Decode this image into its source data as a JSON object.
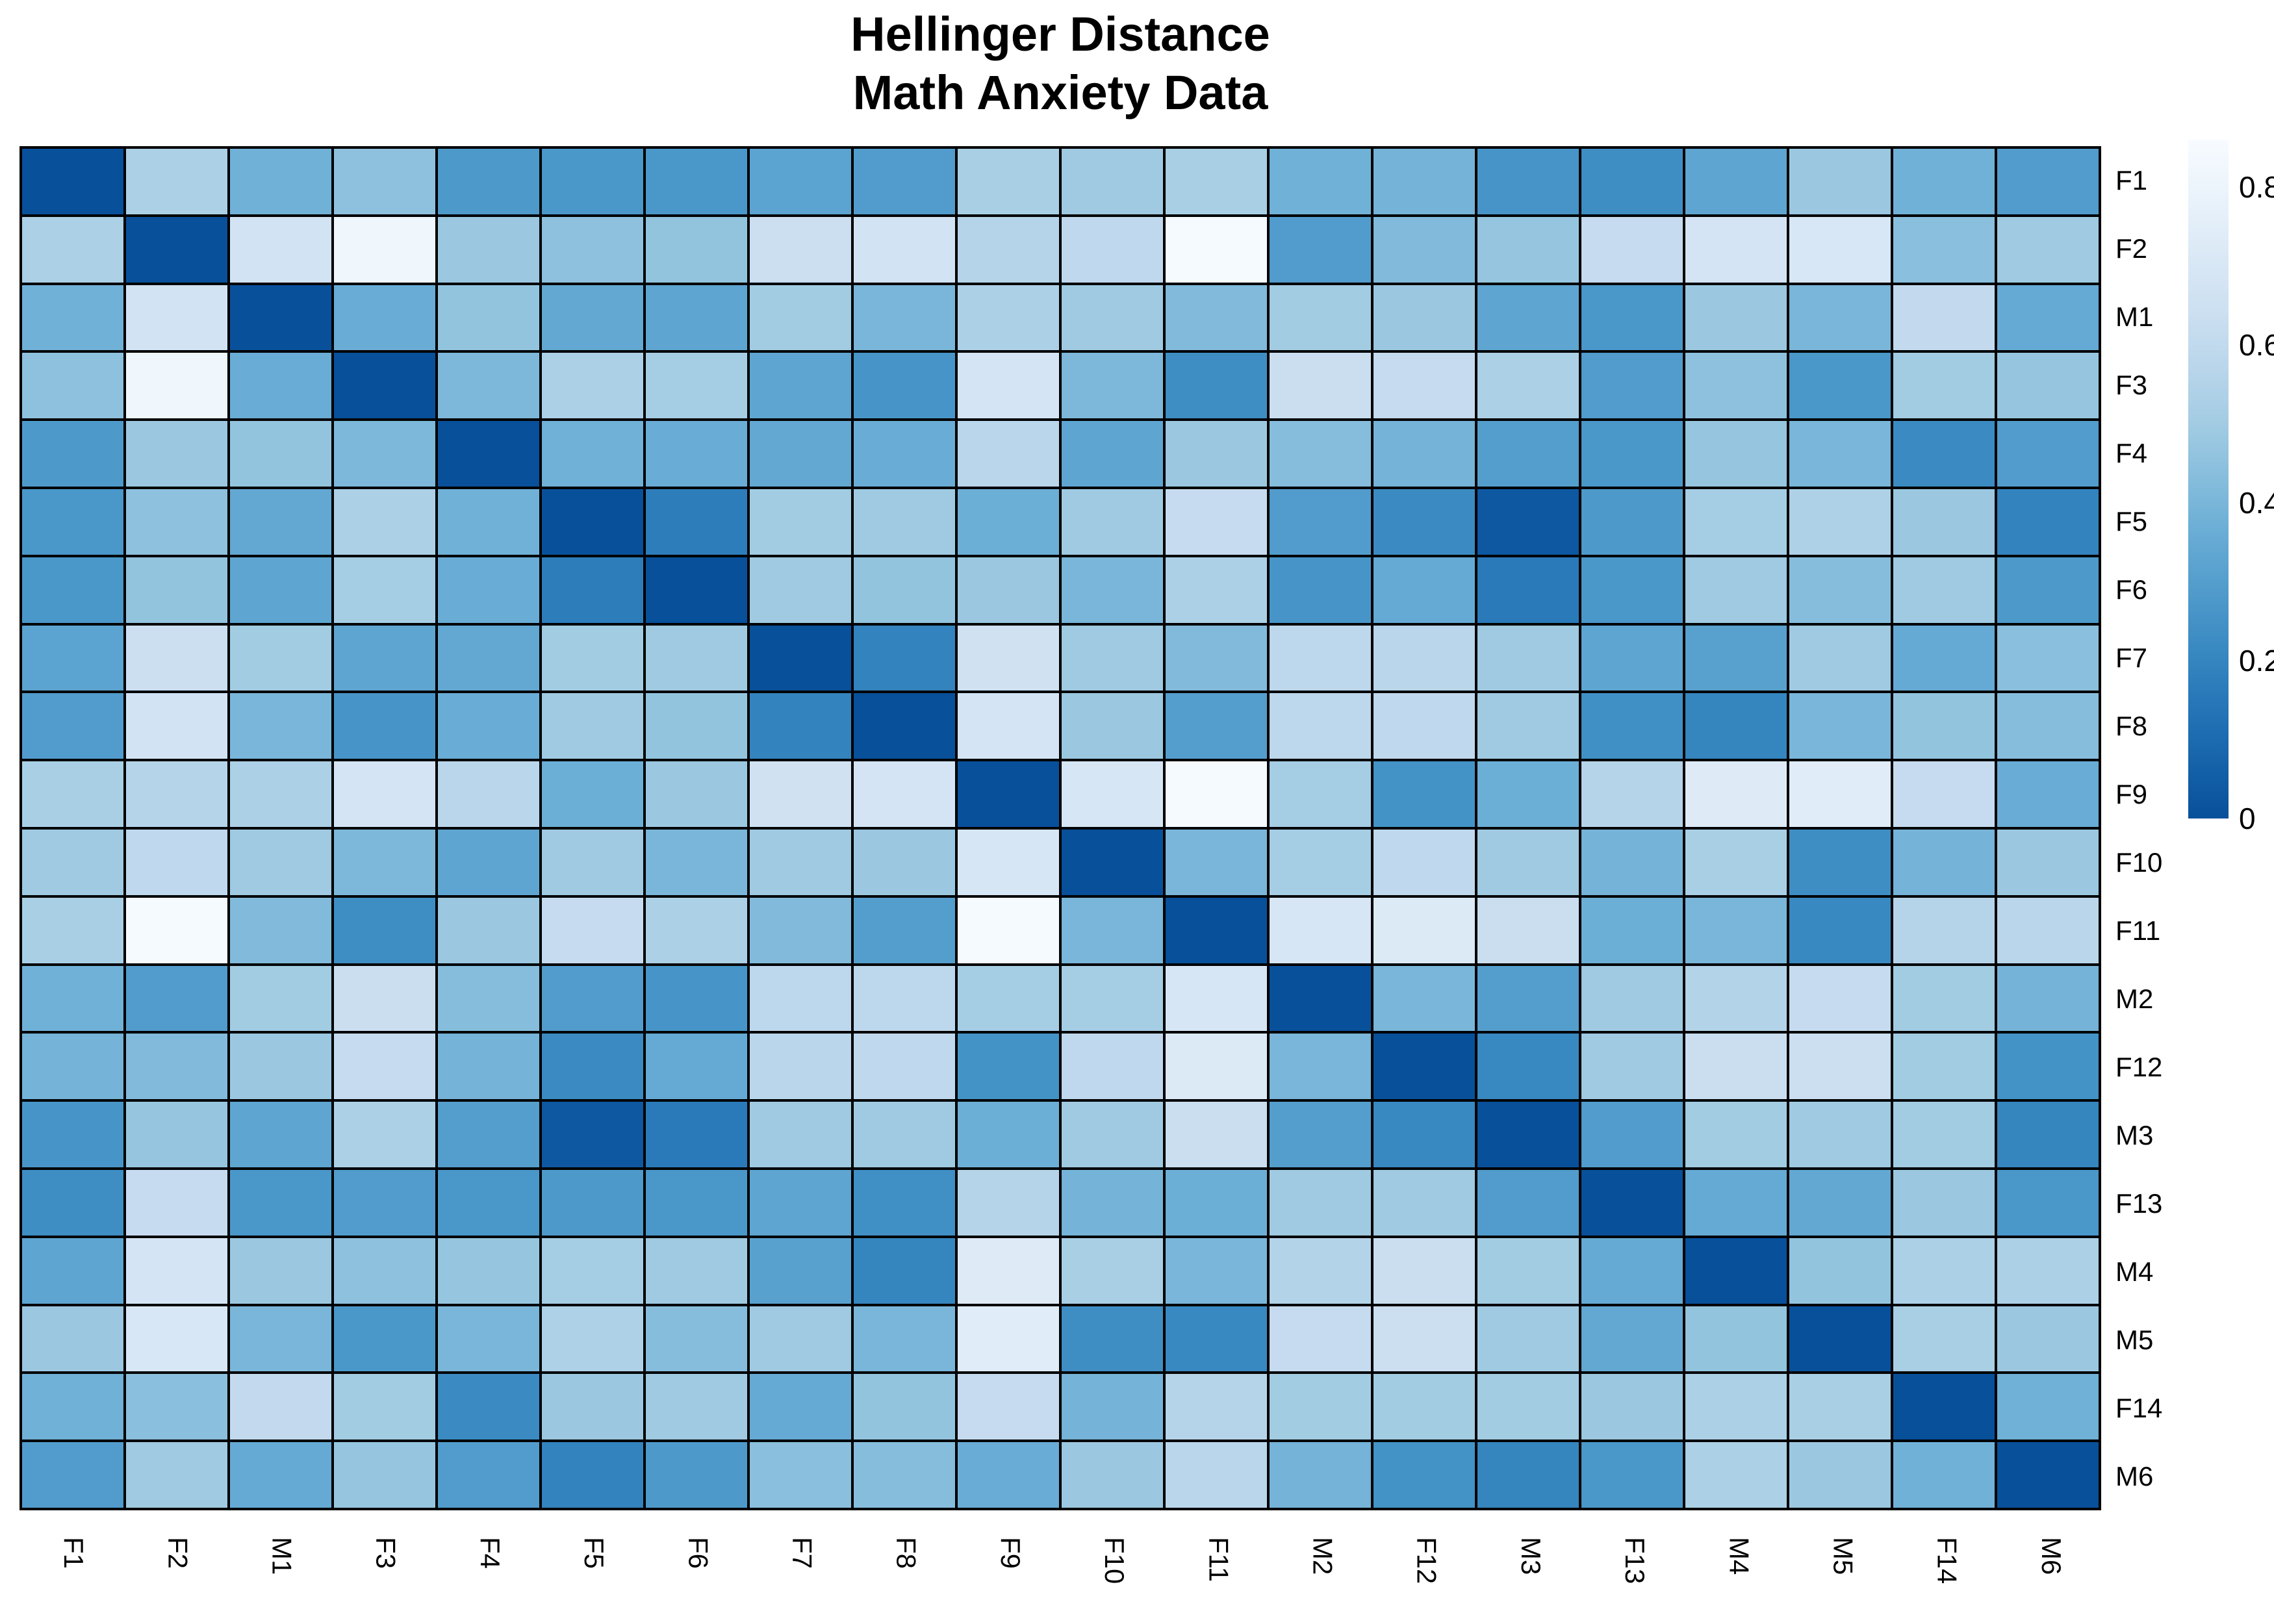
{
  "title": {
    "line1": "Hellinger Distance",
    "line2": "Math Anxiety Data"
  },
  "chart_data": {
    "type": "heatmap",
    "title": "Hellinger Distance",
    "subtitle": "Math Anxiety Data",
    "labels": [
      "F1",
      "F2",
      "M1",
      "F3",
      "F4",
      "F5",
      "F6",
      "F7",
      "F8",
      "F9",
      "F10",
      "F11",
      "M2",
      "F12",
      "M3",
      "F13",
      "M4",
      "M5",
      "F14",
      "M6"
    ],
    "matrix": [
      [
        0.0,
        0.53,
        0.38,
        0.45,
        0.28,
        0.27,
        0.27,
        0.32,
        0.29,
        0.52,
        0.49,
        0.52,
        0.38,
        0.39,
        0.26,
        0.23,
        0.33,
        0.48,
        0.38,
        0.29
      ],
      [
        0.53,
        0.0,
        0.67,
        0.81,
        0.48,
        0.45,
        0.46,
        0.64,
        0.67,
        0.56,
        0.59,
        0.84,
        0.29,
        0.42,
        0.47,
        0.61,
        0.68,
        0.7,
        0.44,
        0.49
      ],
      [
        0.38,
        0.67,
        0.0,
        0.36,
        0.46,
        0.34,
        0.33,
        0.5,
        0.4,
        0.53,
        0.49,
        0.42,
        0.5,
        0.48,
        0.33,
        0.27,
        0.48,
        0.4,
        0.6,
        0.35
      ],
      [
        0.45,
        0.81,
        0.36,
        0.0,
        0.41,
        0.53,
        0.51,
        0.33,
        0.26,
        0.68,
        0.41,
        0.23,
        0.63,
        0.61,
        0.53,
        0.29,
        0.45,
        0.27,
        0.5,
        0.47
      ],
      [
        0.28,
        0.48,
        0.46,
        0.41,
        0.0,
        0.38,
        0.36,
        0.34,
        0.36,
        0.57,
        0.33,
        0.48,
        0.43,
        0.39,
        0.3,
        0.27,
        0.47,
        0.4,
        0.22,
        0.29
      ],
      [
        0.27,
        0.45,
        0.34,
        0.53,
        0.38,
        0.0,
        0.17,
        0.5,
        0.49,
        0.37,
        0.49,
        0.61,
        0.29,
        0.22,
        0.03,
        0.28,
        0.51,
        0.54,
        0.48,
        0.19
      ],
      [
        0.27,
        0.46,
        0.33,
        0.51,
        0.36,
        0.17,
        0.0,
        0.49,
        0.46,
        0.48,
        0.4,
        0.53,
        0.26,
        0.35,
        0.16,
        0.27,
        0.49,
        0.43,
        0.49,
        0.28
      ],
      [
        0.32,
        0.64,
        0.5,
        0.33,
        0.34,
        0.5,
        0.49,
        0.0,
        0.19,
        0.66,
        0.49,
        0.42,
        0.58,
        0.57,
        0.49,
        0.33,
        0.31,
        0.49,
        0.35,
        0.44
      ],
      [
        0.29,
        0.67,
        0.4,
        0.26,
        0.36,
        0.49,
        0.46,
        0.19,
        0.0,
        0.68,
        0.48,
        0.3,
        0.58,
        0.59,
        0.49,
        0.24,
        0.2,
        0.4,
        0.46,
        0.43
      ],
      [
        0.52,
        0.56,
        0.53,
        0.68,
        0.57,
        0.37,
        0.48,
        0.66,
        0.68,
        0.0,
        0.69,
        0.84,
        0.51,
        0.25,
        0.37,
        0.56,
        0.73,
        0.74,
        0.61,
        0.36
      ],
      [
        0.49,
        0.59,
        0.49,
        0.41,
        0.33,
        0.49,
        0.4,
        0.49,
        0.48,
        0.69,
        0.0,
        0.4,
        0.51,
        0.59,
        0.49,
        0.39,
        0.52,
        0.23,
        0.39,
        0.48
      ],
      [
        0.52,
        0.84,
        0.42,
        0.23,
        0.48,
        0.61,
        0.53,
        0.42,
        0.3,
        0.84,
        0.4,
        0.0,
        0.69,
        0.72,
        0.63,
        0.37,
        0.4,
        0.21,
        0.56,
        0.57
      ],
      [
        0.38,
        0.29,
        0.5,
        0.63,
        0.43,
        0.29,
        0.26,
        0.58,
        0.58,
        0.51,
        0.51,
        0.69,
        0.0,
        0.4,
        0.3,
        0.49,
        0.55,
        0.61,
        0.5,
        0.39
      ],
      [
        0.39,
        0.42,
        0.48,
        0.61,
        0.39,
        0.22,
        0.35,
        0.57,
        0.59,
        0.25,
        0.59,
        0.72,
        0.4,
        0.0,
        0.21,
        0.49,
        0.63,
        0.64,
        0.5,
        0.25
      ],
      [
        0.26,
        0.47,
        0.33,
        0.53,
        0.3,
        0.03,
        0.16,
        0.49,
        0.49,
        0.37,
        0.49,
        0.63,
        0.3,
        0.21,
        0.0,
        0.29,
        0.5,
        0.49,
        0.5,
        0.2
      ],
      [
        0.23,
        0.61,
        0.27,
        0.29,
        0.27,
        0.28,
        0.27,
        0.33,
        0.24,
        0.56,
        0.39,
        0.37,
        0.49,
        0.49,
        0.29,
        0.0,
        0.35,
        0.34,
        0.48,
        0.27
      ],
      [
        0.33,
        0.68,
        0.48,
        0.45,
        0.47,
        0.51,
        0.49,
        0.31,
        0.2,
        0.73,
        0.52,
        0.4,
        0.55,
        0.63,
        0.5,
        0.35,
        0.0,
        0.46,
        0.53,
        0.53
      ],
      [
        0.48,
        0.7,
        0.4,
        0.27,
        0.4,
        0.54,
        0.43,
        0.49,
        0.4,
        0.74,
        0.23,
        0.21,
        0.61,
        0.64,
        0.49,
        0.34,
        0.46,
        0.0,
        0.52,
        0.48
      ],
      [
        0.38,
        0.44,
        0.6,
        0.5,
        0.22,
        0.48,
        0.49,
        0.35,
        0.46,
        0.61,
        0.39,
        0.56,
        0.5,
        0.5,
        0.5,
        0.48,
        0.53,
        0.52,
        0.0,
        0.38
      ],
      [
        0.29,
        0.49,
        0.35,
        0.47,
        0.29,
        0.19,
        0.28,
        0.44,
        0.43,
        0.36,
        0.48,
        0.57,
        0.39,
        0.25,
        0.2,
        0.27,
        0.53,
        0.48,
        0.38,
        0.0
      ]
    ],
    "value_range": [
      0,
      0.86
    ],
    "colorbar": {
      "position": "right",
      "min": 0,
      "max": 0.86,
      "ticks": [
        {
          "label": "0.8",
          "value": 0.8
        },
        {
          "label": "0.6",
          "value": 0.6
        },
        {
          "label": "0.4",
          "value": 0.4
        },
        {
          "label": "0.2",
          "value": 0.2
        },
        {
          "label": "0",
          "value": 0.0
        }
      ]
    },
    "colors": {
      "min_value_cell": "#094794",
      "max_value_cell": "#f7fbff",
      "grid_line": "#000000",
      "background": "#ffffff",
      "text": "#000000"
    },
    "layout": {
      "row_labels_side": "right",
      "col_labels_side": "bottom",
      "col_label_rotation_deg": 90,
      "grid_on": true
    }
  }
}
